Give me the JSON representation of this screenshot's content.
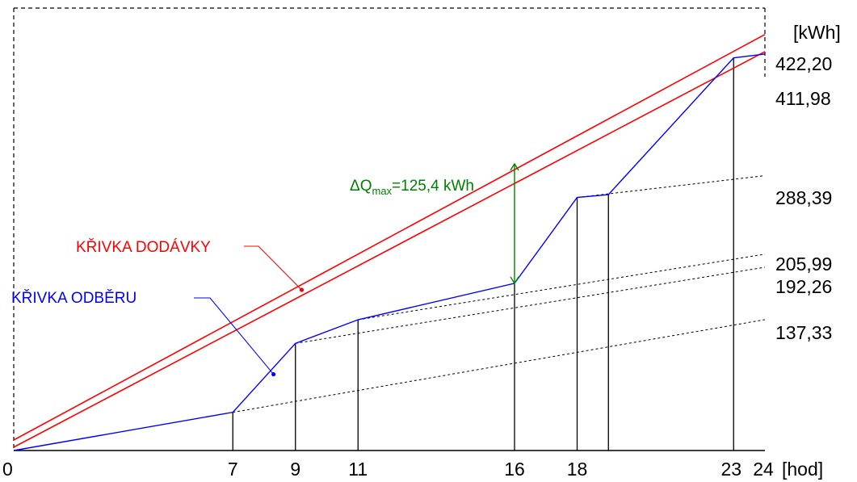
{
  "chart_data": {
    "type": "line",
    "title": "",
    "xlabel": "[hod]",
    "ylabel": "[kWh]",
    "xlim": [
      0,
      24
    ],
    "ylim": [
      0,
      430
    ],
    "x_ticks": [
      "0",
      "7",
      "9",
      "11",
      "16",
      "18",
      "23",
      "24"
    ],
    "x_tick_values": [
      0,
      7,
      9,
      11,
      16,
      18,
      23,
      24
    ],
    "y_ticks": [
      {
        "label": "422,20",
        "value": 422.2
      },
      {
        "label": "411,98",
        "value": 411.98
      },
      {
        "label": "288,39",
        "value": 288.39
      },
      {
        "label": "205,99",
        "value": 205.99
      },
      {
        "label": "192,26",
        "value": 192.26
      },
      {
        "label": "137,33",
        "value": 137.33
      }
    ],
    "series": [
      {
        "name": "KŘIVKA ODBĚRU",
        "color": "#0000ff",
        "points": [
          [
            0,
            0
          ],
          [
            7,
            40.1
          ],
          [
            9,
            112.4
          ],
          [
            11,
            137.2
          ],
          [
            16,
            175.4
          ],
          [
            18,
            265.5
          ],
          [
            19,
            268.5
          ],
          [
            23,
            411.98
          ],
          [
            24,
            416
          ]
        ]
      },
      {
        "name": "KŘIVKA DODÁVKY",
        "color": "#ff0000",
        "lines": [
          {
            "points": [
              [
                0,
                11
              ],
              [
                24,
                436.5
              ]
            ]
          },
          {
            "points": [
              [
                0,
                3.5
              ],
              [
                24,
                418.5
              ]
            ]
          }
        ]
      }
    ],
    "vertical_lines": [
      {
        "x": 7,
        "y": 40.1
      },
      {
        "x": 9,
        "y": 112.4
      },
      {
        "x": 11,
        "y": 137.2
      },
      {
        "x": 16,
        "y": 175.4
      },
      {
        "x": 18,
        "y": 265.5
      },
      {
        "x": 19,
        "y": 268.5
      },
      {
        "x": 23,
        "y": 411.98
      }
    ],
    "dotted_extensions": [
      {
        "from": [
          7,
          40.1
        ],
        "to": [
          24,
          137.33
        ]
      },
      {
        "from": [
          9,
          112.4
        ],
        "to": [
          24,
          192.26
        ]
      },
      {
        "from": [
          11,
          137.2
        ],
        "to": [
          24,
          205.99
        ]
      },
      {
        "from": [
          18,
          265.5
        ],
        "to": [
          24,
          288.39
        ]
      }
    ],
    "annotations": [
      {
        "text": "ΔQ",
        "sub": "max",
        "rest": "=125,4 kWh",
        "color": "#008000",
        "arrow_x": 16,
        "from": 175.4,
        "to": 300.8
      },
      {
        "text": "KŘIVKA DODÁVKY",
        "color": "#ff0000",
        "point": [
          9.2,
          168.5
        ]
      },
      {
        "text": "KŘIVKA ODBĚRU",
        "color": "#0000ff",
        "point": [
          8.3,
          80
        ]
      }
    ],
    "colors": {
      "demand": "#0000ff",
      "supply": "#ff0000",
      "delta": "#008000",
      "axes": "#000000"
    }
  }
}
